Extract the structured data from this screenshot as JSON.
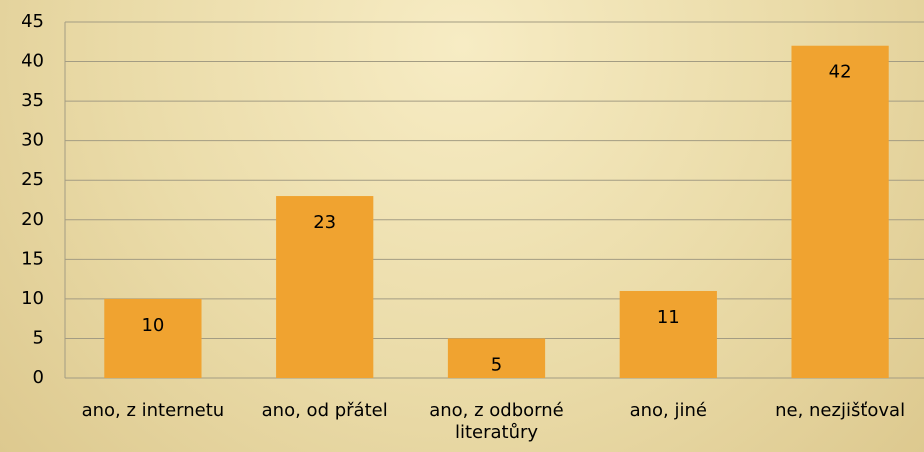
{
  "chart_data": {
    "type": "bar",
    "categories": [
      "ano, z internetu",
      "ano, od přátel",
      "ano, z odborné literatůry",
      "ano, jiné",
      "ne, nezjišťoval"
    ],
    "values": [
      10,
      23,
      5,
      11,
      42
    ],
    "color": "#f0a330",
    "ylim": [
      0,
      45
    ],
    "yticks": [
      0,
      5,
      10,
      15,
      20,
      25,
      30,
      35,
      40,
      45
    ],
    "grid": true,
    "data_labels": true
  }
}
